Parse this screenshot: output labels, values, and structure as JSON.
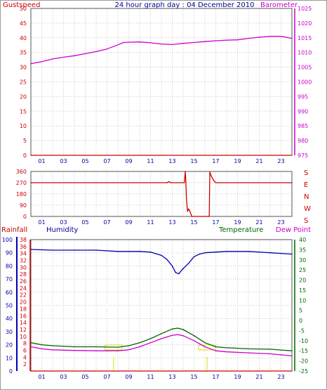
{
  "header": {
    "left_label": "Gustspeed",
    "title": "24 hour graph day : 04 December 2010",
    "right_label": "Barometer"
  },
  "labels": {
    "rainfall": "Rainfall",
    "humidity": "Humidity",
    "temperature": "Temperature",
    "dew_point": "Dew Point"
  },
  "colors": {
    "gust": "#cc0000",
    "baro": "#cc00cc",
    "title": "#000099",
    "dir": "#cc0000",
    "rain": "#cc0000",
    "humidity": "#0000aa",
    "temperature": "#006600",
    "dew": "#cc00cc",
    "sun": "#dddd00",
    "grid": "#c8c8c8"
  },
  "x_tick_labels": [
    "01",
    "03",
    "05",
    "07",
    "09",
    "11",
    "13",
    "15",
    "17",
    "19",
    "21",
    "23"
  ],
  "chart_data": [
    {
      "type": "line",
      "title": "24 hour graph day : 04 December 2010",
      "xlabel": "",
      "ylabel": "Gustspeed",
      "y2label": "Barometer",
      "xlim": [
        0,
        24
      ],
      "ylim": [
        0,
        50
      ],
      "y2lim": [
        975,
        1025
      ],
      "yticks": [
        0,
        5,
        10,
        15,
        20,
        25,
        30,
        35,
        40,
        45,
        50
      ],
      "y2ticks": [
        975,
        980,
        985,
        990,
        995,
        1000,
        1005,
        1010,
        1015,
        1020,
        1025
      ],
      "grid": true,
      "series": [
        {
          "name": "Gustspeed",
          "axis": "left",
          "x": [
            0,
            24
          ],
          "y": [
            0,
            0
          ]
        },
        {
          "name": "Barometer",
          "axis": "right",
          "x": [
            0,
            1,
            2,
            3,
            4,
            5,
            6,
            7,
            8,
            8.5,
            9,
            10,
            11,
            12,
            13,
            14,
            15,
            16,
            17,
            18,
            19,
            20,
            21,
            22,
            23,
            24
          ],
          "y": [
            1006.2,
            1006.9,
            1007.8,
            1008.4,
            1008.9,
            1009.6,
            1010.3,
            1011.2,
            1012.6,
            1013.4,
            1013.5,
            1013.6,
            1013.3,
            1012.9,
            1012.7,
            1013.1,
            1013.4,
            1013.7,
            1014.0,
            1014.2,
            1014.3,
            1014.8,
            1015.2,
            1015.5,
            1015.5,
            1014.8
          ]
        }
      ]
    },
    {
      "type": "line",
      "ylabel": "S E N W S",
      "xlim": [
        0,
        24
      ],
      "ylim": [
        0,
        360
      ],
      "yticks": [
        0,
        90,
        180,
        270,
        360
      ],
      "grid": true,
      "series": [
        {
          "name": "Wind Direction",
          "x": [
            0,
            12.5,
            12.7,
            12.9,
            14.1,
            14.2,
            14.25,
            14.3,
            14.4,
            14.5,
            14.6,
            14.8,
            16.0,
            16.4,
            16.45,
            16.6,
            16.8,
            17.0,
            17.3,
            24
          ],
          "y": [
            270,
            270,
            278,
            270,
            270,
            360,
            270,
            150,
            40,
            60,
            45,
            0,
            0,
            0,
            355,
            320,
            290,
            270,
            270,
            270
          ]
        }
      ]
    },
    {
      "type": "line",
      "ylabel": "Humidity",
      "y2label": "Temperature",
      "xlim": [
        0,
        24
      ],
      "humidity_ylim": [
        0,
        100
      ],
      "humidity_yticks": [
        0,
        10,
        20,
        30,
        40,
        50,
        60,
        70,
        80,
        90,
        100
      ],
      "rain_ylim": [
        0,
        38
      ],
      "rain_yticks": [
        2,
        4,
        6,
        8,
        10,
        12,
        14,
        16,
        18,
        20,
        22,
        24,
        26,
        28,
        30,
        32,
        34,
        36,
        38
      ],
      "temp_ylim": [
        -25,
        40
      ],
      "temp_yticks": [
        -25,
        -20,
        -15,
        -10,
        -5,
        0,
        5,
        10,
        15,
        20,
        25,
        30,
        35,
        40
      ],
      "grid": true,
      "series": [
        {
          "name": "Humidity",
          "axis": "humidity",
          "x": [
            0,
            2,
            4,
            6,
            8,
            10,
            11,
            12,
            12.5,
            13,
            13.3,
            13.6,
            14,
            14.5,
            15,
            15.5,
            16,
            18,
            20,
            22,
            23,
            24
          ],
          "y": [
            92.5,
            92,
            92,
            92,
            91,
            91,
            90.5,
            88,
            85,
            80,
            75,
            74,
            78,
            82,
            87,
            89,
            90,
            91,
            91,
            90,
            89.5,
            89
          ]
        },
        {
          "name": "Temperature",
          "axis": "temp",
          "x": [
            0,
            1,
            2,
            4,
            6,
            8,
            9,
            10,
            11,
            12,
            13,
            13.5,
            14,
            15,
            16,
            17,
            18,
            20,
            22,
            23,
            24
          ],
          "y": [
            -11,
            -12,
            -12.5,
            -13,
            -13,
            -13.2,
            -12.5,
            -11,
            -9,
            -6.5,
            -4.2,
            -3.8,
            -4.5,
            -7.5,
            -11,
            -13,
            -13.5,
            -14,
            -14.2,
            -14.6,
            -15
          ]
        },
        {
          "name": "Dew Point",
          "axis": "temp",
          "x": [
            0,
            1,
            2,
            4,
            6,
            8,
            9,
            10,
            11,
            12,
            13,
            13.5,
            14,
            15,
            16,
            17,
            18,
            20,
            22,
            23,
            24
          ],
          "y": [
            -13,
            -14,
            -14.5,
            -14.8,
            -15,
            -15,
            -14.5,
            -13,
            -11,
            -9,
            -7.3,
            -7,
            -7.5,
            -10,
            -13,
            -15,
            -15.5,
            -16,
            -16.5,
            -17,
            -17.5
          ]
        },
        {
          "name": "Rainfall",
          "axis": "rain",
          "x": [
            0,
            24
          ],
          "y": [
            0,
            0
          ]
        }
      ]
    }
  ]
}
